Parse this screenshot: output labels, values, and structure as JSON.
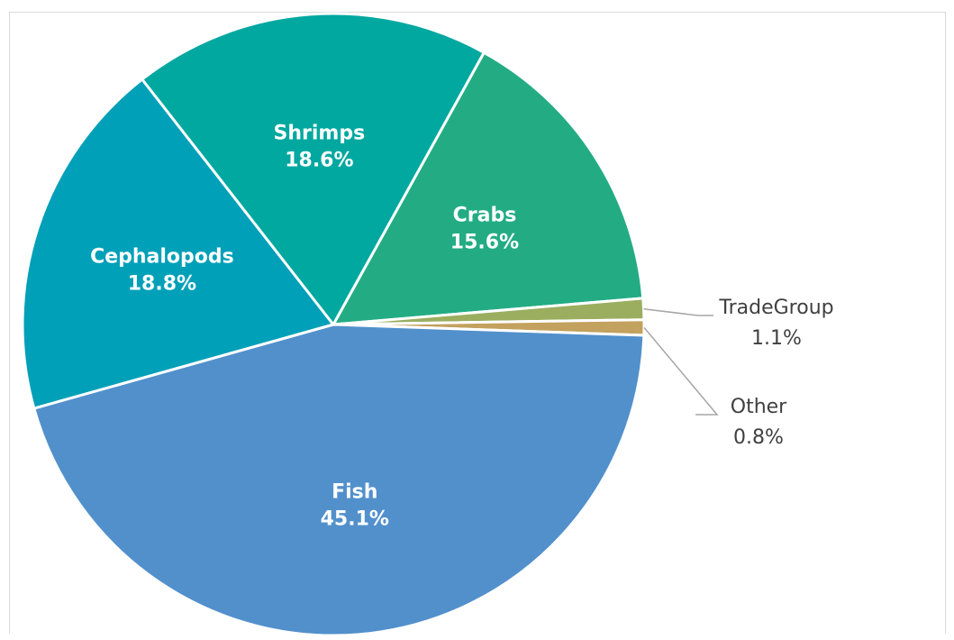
{
  "chart_data": {
    "type": "pie",
    "slices": [
      {
        "name": "Crabs",
        "value": 15.6,
        "label": "15.6%",
        "color": "#23AC84",
        "label_style": "inside"
      },
      {
        "name": "TradeGroup",
        "value": 1.1,
        "label": "1.1%",
        "color": "#9BAE5F",
        "label_style": "outside"
      },
      {
        "name": "Other",
        "value": 0.8,
        "label": "0.8%",
        "color": "#C3A15E",
        "label_style": "outside"
      },
      {
        "name": "Fish",
        "value": 45.1,
        "label": "45.1%",
        "color": "#5290CC",
        "label_style": "inside"
      },
      {
        "name": "Cephalopods",
        "value": 18.8,
        "label": "18.8%",
        "color": "#00A0B8",
        "label_style": "inside"
      },
      {
        "name": "Shrimps",
        "value": 18.6,
        "label": "18.6%",
        "color": "#00A8A0",
        "label_style": "inside"
      }
    ],
    "start_angle_deg": 29,
    "direction": "clockwise",
    "legend": "none"
  }
}
